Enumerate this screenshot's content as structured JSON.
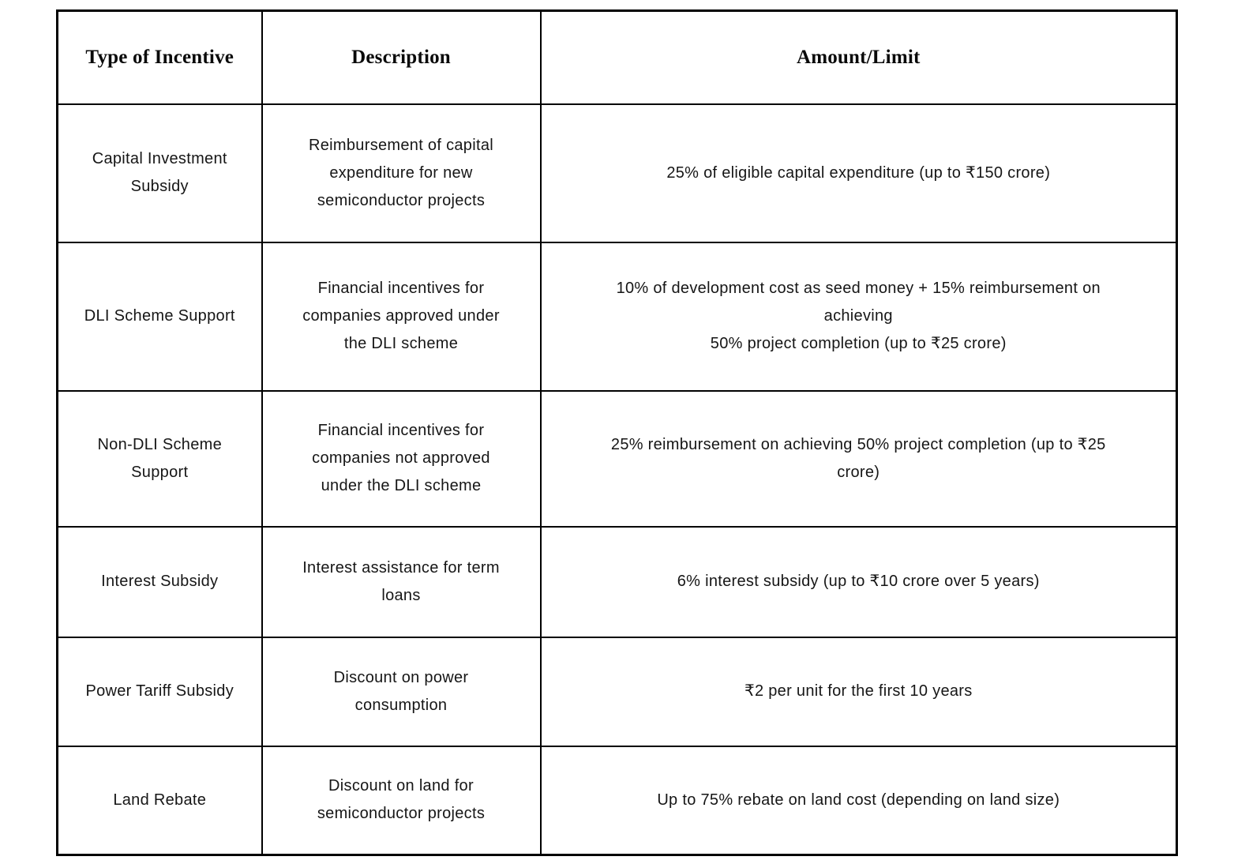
{
  "page": {
    "background_color": "#ffffff",
    "border_color": "#000000",
    "text_color": "#161616"
  },
  "table": {
    "columns": [
      "Type of Incentive",
      "Description",
      "Amount/Limit"
    ],
    "rows": [
      {
        "type": "Capital Investment Subsidy",
        "description": "Reimbursement of capital expenditure for new semiconductor projects",
        "amount": "25% of eligible capital expenditure (up to ₹150 crore)"
      },
      {
        "type": "DLI Scheme Support",
        "description": "Financial incentives for companies approved under the DLI scheme",
        "amount": "10% of development cost as seed money + 15% reimbursement on achieving\n50% project completion (up to ₹25 crore)"
      },
      {
        "type": "Non-DLI Scheme Support",
        "description": "Financial incentives for companies not approved under the DLI scheme",
        "amount": "25% reimbursement on achieving 50% project completion (up to ₹25 crore)"
      },
      {
        "type": "Interest Subsidy",
        "description": "Interest assistance for term loans",
        "amount": "6% interest subsidy (up to ₹10 crore over 5 years)"
      },
      {
        "type": "Power Tariff Subsidy",
        "description": "Discount on power consumption",
        "amount": "₹2 per unit for the first 10 years"
      },
      {
        "type": "Land Rebate",
        "description": "Discount on land for semiconductor projects",
        "amount": "Up to 75% rebate on land cost (depending on land size)"
      }
    ]
  }
}
